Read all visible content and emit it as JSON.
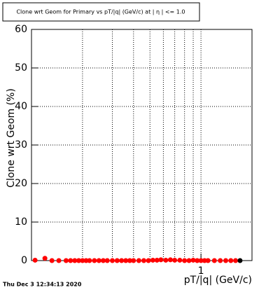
{
  "chart_data": {
    "type": "scatter",
    "title": "Clone wrt Geom for Primary vs pT/|q| (GeV/c) at | η | <= 1.0",
    "x_label": "pT/|q| (GeV/c)",
    "y_label": "Clone wrt Geom (%)",
    "footer": "Thu Dec  3 12:34:13 2020",
    "xlog": true,
    "xlim": [
      0.1,
      2
    ],
    "ylim": [
      0,
      60
    ],
    "xticks": [
      1
    ],
    "yticks": [
      0,
      10,
      20,
      30,
      40,
      50,
      60
    ],
    "xgrid": [
      0.2,
      0.3,
      0.4,
      0.5,
      0.6,
      0.7,
      0.8,
      0.9,
      1,
      2
    ],
    "grid": true,
    "color": "#ff0000",
    "x": [
      0.105,
      0.12,
      0.132,
      0.145,
      0.16,
      0.17,
      0.18,
      0.19,
      0.2,
      0.21,
      0.22,
      0.235,
      0.25,
      0.265,
      0.28,
      0.3,
      0.32,
      0.34,
      0.36,
      0.38,
      0.4,
      0.43,
      0.46,
      0.49,
      0.52,
      0.55,
      0.58,
      0.62,
      0.66,
      0.7,
      0.75,
      0.8,
      0.85,
      0.9,
      0.95,
      1.0,
      1.05,
      1.1,
      1.2,
      1.3,
      1.4,
      1.5,
      1.6,
      1.7
    ],
    "values": [
      0.1,
      0.6,
      0,
      0,
      0,
      0,
      0,
      0,
      0,
      0,
      0,
      0,
      0,
      0,
      0,
      0,
      0,
      0,
      0,
      0,
      0,
      0,
      0,
      0,
      0.1,
      0.1,
      0.2,
      0.1,
      0.2,
      0.1,
      0.1,
      0,
      0,
      0.1,
      0,
      0,
      0,
      0,
      0,
      0,
      0,
      0,
      0,
      0
    ],
    "colors": [
      "#ff0000",
      "#ff0000",
      "#ff0000",
      "#ff0000",
      "#ff0000",
      "#ff0000",
      "#ff0000",
      "#ff0000",
      "#ff0000",
      "#ff0000",
      "#ff0000",
      "#ff0000",
      "#ff0000",
      "#ff0000",
      "#ff0000",
      "#ff0000",
      "#ff0000",
      "#ff0000",
      "#ff0000",
      "#ff0000",
      "#ff0000",
      "#ff0000",
      "#ff0000",
      "#ff0000",
      "#ff0000",
      "#ff0000",
      "#ff0000",
      "#ff0000",
      "#ff0000",
      "#ff0000",
      "#ff0000",
      "#ff0000",
      "#ff0000",
      "#ff0000",
      "#ff0000",
      "#ff0000",
      "#ff0000",
      "#ff0000",
      "#ff0000",
      "#ff0000",
      "#ff0000",
      "#ff0000",
      "#ff0000",
      "#000000"
    ]
  }
}
